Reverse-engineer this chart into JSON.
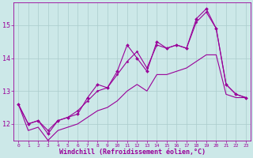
{
  "xlabel": "Windchill (Refroidissement éolien,°C)",
  "background_color": "#cce8e8",
  "grid_color": "#aacccc",
  "line_color": "#990099",
  "x": [
    0,
    1,
    2,
    3,
    4,
    5,
    6,
    7,
    8,
    9,
    10,
    11,
    12,
    13,
    14,
    15,
    16,
    17,
    18,
    19,
    20,
    21,
    22,
    23
  ],
  "line_jagged": [
    12.6,
    12.0,
    12.1,
    11.7,
    12.1,
    12.2,
    12.3,
    12.8,
    13.2,
    13.1,
    13.6,
    14.4,
    14.0,
    13.6,
    14.5,
    14.3,
    14.4,
    14.3,
    15.2,
    15.5,
    14.9,
    13.2,
    12.9,
    12.8
  ],
  "line_smooth": [
    12.6,
    12.0,
    12.1,
    11.8,
    12.1,
    12.2,
    12.4,
    12.7,
    13.0,
    13.1,
    13.5,
    13.9,
    14.2,
    13.7,
    14.4,
    14.3,
    14.4,
    14.3,
    15.1,
    15.4,
    14.9,
    13.2,
    12.9,
    12.8
  ],
  "line_lower": [
    12.6,
    11.8,
    11.9,
    11.5,
    11.8,
    11.9,
    12.0,
    12.2,
    12.4,
    12.5,
    12.7,
    13.0,
    13.2,
    13.0,
    13.5,
    13.5,
    13.6,
    13.7,
    13.9,
    14.1,
    14.1,
    12.9,
    12.8,
    12.8
  ],
  "ylim": [
    11.5,
    15.7
  ],
  "yticks": [
    12,
    13,
    14,
    15
  ],
  "xticks": [
    0,
    1,
    2,
    3,
    4,
    5,
    6,
    7,
    8,
    9,
    10,
    11,
    12,
    13,
    14,
    15,
    16,
    17,
    18,
    19,
    20,
    21,
    22,
    23
  ]
}
